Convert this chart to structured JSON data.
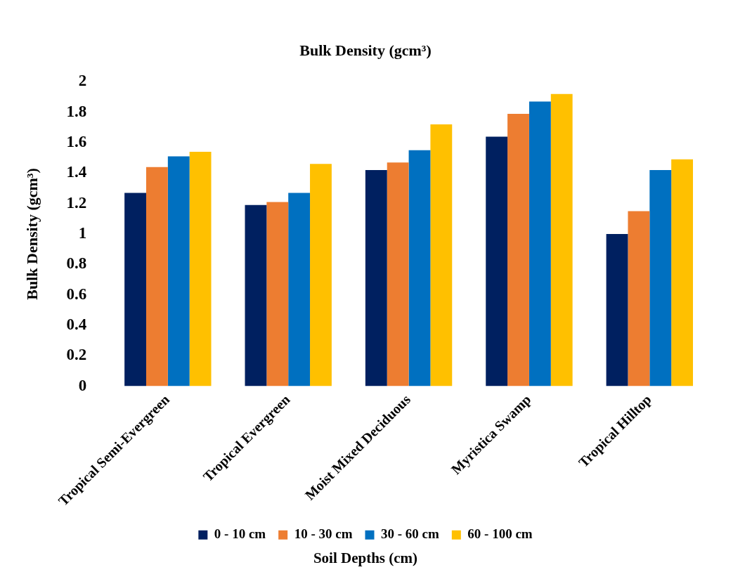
{
  "chart_data": {
    "type": "bar",
    "title": "Bulk Density (gcm³)",
    "xlabel": "Soil Depths (cm)",
    "ylabel": "Bulk Density (gcm³)",
    "categories": [
      "Tropical Semi-Evergreen",
      "Tropical Evergreen",
      "Moist Mixed Deciduous",
      "Myristica Swamp",
      "Tropical Hilltop"
    ],
    "series": [
      {
        "name": "0 - 10 cm",
        "color": "#002060",
        "values": [
          1.27,
          1.19,
          1.42,
          1.64,
          1.0
        ]
      },
      {
        "name": "10 - 30 cm",
        "color": "#ed7d31",
        "values": [
          1.44,
          1.21,
          1.47,
          1.79,
          1.15
        ]
      },
      {
        "name": "30 - 60 cm",
        "color": "#0070c0",
        "values": [
          1.51,
          1.27,
          1.55,
          1.87,
          1.42
        ]
      },
      {
        "name": "60 - 100 cm",
        "color": "#ffc000",
        "values": [
          1.54,
          1.46,
          1.72,
          1.92,
          1.49
        ]
      }
    ],
    "ylim": [
      0,
      2
    ],
    "yticks": [
      0,
      0.2,
      0.4,
      0.6,
      0.8,
      1,
      1.2,
      1.4,
      1.6,
      1.8,
      2
    ],
    "grid": false,
    "legend": "bottom"
  }
}
